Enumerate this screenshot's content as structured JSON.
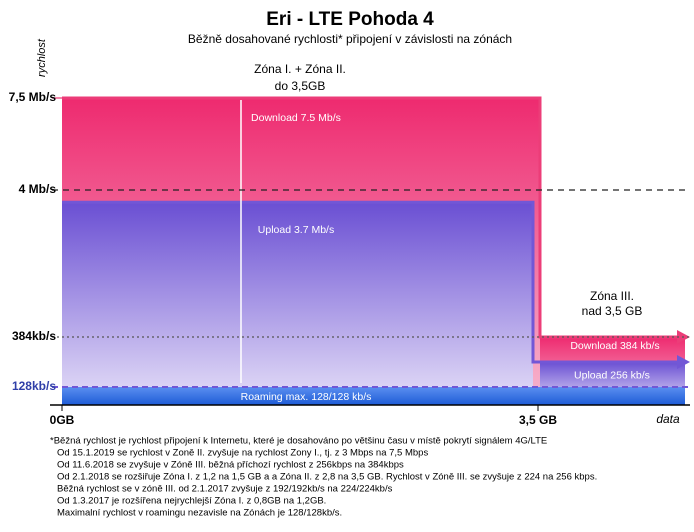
{
  "chart_data": {
    "type": "step-area",
    "title": "Eri - LTE Pohoda 4",
    "subtitle": "Běžně dosahované rychlosti* připojení v závislosti na zónách",
    "y_label": "rychlost",
    "x_label": "data",
    "ylim": [
      0,
      7.5
    ],
    "yticks": [
      {
        "value": 7.5,
        "label": "7,5 Mb/s"
      },
      {
        "value": 4,
        "label": "4 Mb/s"
      },
      {
        "value": 0.384,
        "label": "384kb/s"
      },
      {
        "value": 0.128,
        "label": "128kb/s"
      }
    ],
    "xlim": [
      0,
      3.5
    ],
    "xticks": [
      {
        "value": 0,
        "label": "0GB"
      },
      {
        "value": 3.5,
        "label": "3,5 GB"
      }
    ],
    "zones": [
      {
        "label": "Zóna I. + Zóna II.",
        "sublabel": "do 3,5GB"
      },
      {
        "label": "Zóna III.",
        "sublabel": "nad 3,5 GB"
      }
    ],
    "series": [
      {
        "name": "Download",
        "color": "#ec3d78",
        "values": [
          7.5,
          0.384
        ],
        "value_labels": [
          "Download 7.5 Mb/s",
          "Download 384 kb/s"
        ]
      },
      {
        "name": "Upload",
        "color": "#7257d6",
        "values": [
          3.7,
          0.256
        ],
        "value_labels": [
          "Upload 3.7 Mb/s",
          "Upload 256 kb/s"
        ]
      },
      {
        "name": "Roaming",
        "color": "#2f6fe0",
        "values": [
          0.128
        ],
        "value_labels": [
          "Roaming max. 128/128 kb/s"
        ]
      }
    ],
    "footnotes": [
      "*Běžná rychlost je rychlost připojení k Internetu, které je dosahováno po většinu času v místě pokrytí signálem 4G/LTE",
      "Od 15.1.2019 se rychlost v Zoně II. zvyšuje na rychlost Zony I., tj. z 3 Mbps na 7,5 Mbps",
      "Od 11.6.2018 se zvyšuje v Zóně III. běžná příchozí rychlost z 256kbps na 384kbps",
      "Od 2.1.2018 se rozšiřuje Zóna I. z 1,2 na 1,5 GB a a Zóna II. z 2,8 na 3,5 GB. Rychlost  v Zóně III. se zvyšuje z 224 na 256 kbps.",
      "Běžná rychlost se v zóně III. od 2.1.2017 zvyšuje z 192/192kb/s  na 224/224kb/s",
      "Od 1.3.2017 je rozšířena nejrychlejší Zóna I. z 0,8GB na 1,2GB.",
      "Maximalní rychlost v roamingu nezavisle na Zónách je 128/128kb/s."
    ]
  }
}
